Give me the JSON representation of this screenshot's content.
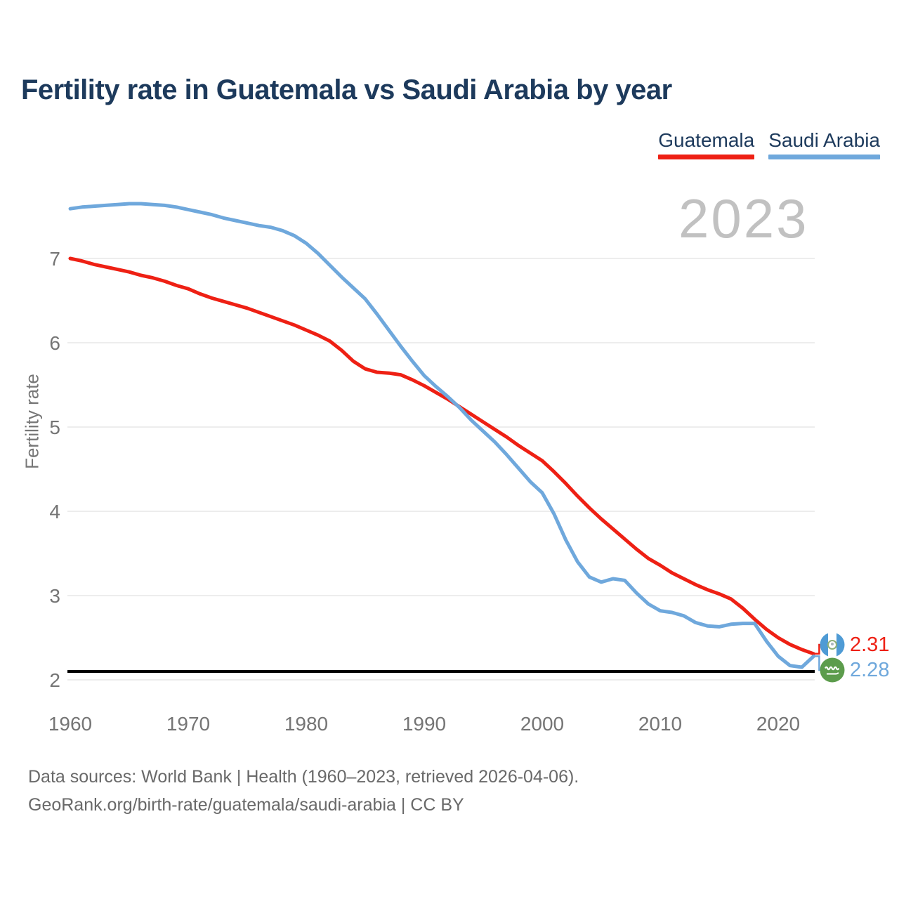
{
  "page": {
    "title": "Fertility rate in Guatemala vs Saudi Arabia by year",
    "watermark": "2023",
    "footer": {
      "line1": "Data sources: World Bank | Health (1960–2023, retrieved 2026-04-06).",
      "line2": "GeoRank.org/birth-rate/guatemala/saudi-arabia | CC BY"
    }
  },
  "colors": {
    "guatemala": "#ee2014",
    "saudi_arabia": "#6fa8dc",
    "title_navy": "#1d3a5c",
    "tick_gray": "#757575",
    "grid_gray": "#ededed",
    "watermark_gray": "#c1c1c1",
    "reference_black": "#000000"
  },
  "chart_data": {
    "type": "line",
    "title": "Fertility rate in Guatemala vs Saudi Arabia by year",
    "xlabel": "",
    "ylabel": "Fertility rate",
    "x_range": [
      1960,
      2023
    ],
    "ylim": [
      2,
      7.65
    ],
    "yticks": [
      2,
      3,
      4,
      5,
      6,
      7
    ],
    "xticks": [
      1960,
      1970,
      1980,
      1990,
      2000,
      2010,
      2020
    ],
    "grid": "horizontal",
    "legend_position": "top-right",
    "watermark_year": "2023",
    "reference_line": {
      "value": 2.1,
      "color": "#000000"
    },
    "years": [
      1960,
      1961,
      1962,
      1963,
      1964,
      1965,
      1966,
      1967,
      1968,
      1969,
      1970,
      1971,
      1972,
      1973,
      1974,
      1975,
      1976,
      1977,
      1978,
      1979,
      1980,
      1981,
      1982,
      1983,
      1984,
      1985,
      1986,
      1987,
      1988,
      1989,
      1990,
      1991,
      1992,
      1993,
      1994,
      1995,
      1996,
      1997,
      1998,
      1999,
      2000,
      2001,
      2002,
      2003,
      2004,
      2005,
      2006,
      2007,
      2008,
      2009,
      2010,
      2011,
      2012,
      2013,
      2014,
      2015,
      2016,
      2017,
      2018,
      2019,
      2020,
      2021,
      2022,
      2023
    ],
    "series": [
      {
        "name": "Guatemala",
        "color": "#ee2014",
        "end_label": "2.31",
        "flag": "guatemala",
        "values": [
          7.0,
          6.97,
          6.93,
          6.9,
          6.87,
          6.84,
          6.8,
          6.77,
          6.73,
          6.68,
          6.64,
          6.58,
          6.53,
          6.49,
          6.45,
          6.41,
          6.36,
          6.31,
          6.26,
          6.21,
          6.15,
          6.09,
          6.02,
          5.91,
          5.78,
          5.69,
          5.65,
          5.64,
          5.62,
          5.56,
          5.49,
          5.41,
          5.33,
          5.24,
          5.15,
          5.06,
          4.97,
          4.88,
          4.78,
          4.69,
          4.6,
          4.47,
          4.33,
          4.18,
          4.04,
          3.91,
          3.79,
          3.67,
          3.55,
          3.44,
          3.36,
          3.27,
          3.2,
          3.13,
          3.07,
          3.02,
          2.96,
          2.85,
          2.72,
          2.6,
          2.5,
          2.42,
          2.36,
          2.31
        ]
      },
      {
        "name": "Saudi Arabia",
        "color": "#6fa8dc",
        "end_label": "2.28",
        "flag": "saudi-arabia",
        "values": [
          7.59,
          7.61,
          7.62,
          7.63,
          7.64,
          7.65,
          7.65,
          7.64,
          7.63,
          7.61,
          7.58,
          7.55,
          7.52,
          7.48,
          7.45,
          7.42,
          7.39,
          7.37,
          7.33,
          7.27,
          7.18,
          7.06,
          6.92,
          6.78,
          6.65,
          6.52,
          6.34,
          6.15,
          5.96,
          5.78,
          5.61,
          5.48,
          5.36,
          5.23,
          5.08,
          4.95,
          4.82,
          4.67,
          4.51,
          4.35,
          4.22,
          3.97,
          3.66,
          3.4,
          3.22,
          3.16,
          3.2,
          3.18,
          3.03,
          2.9,
          2.82,
          2.8,
          2.76,
          2.68,
          2.64,
          2.63,
          2.66,
          2.67,
          2.67,
          2.46,
          2.28,
          2.17,
          2.15,
          2.28
        ]
      }
    ]
  }
}
